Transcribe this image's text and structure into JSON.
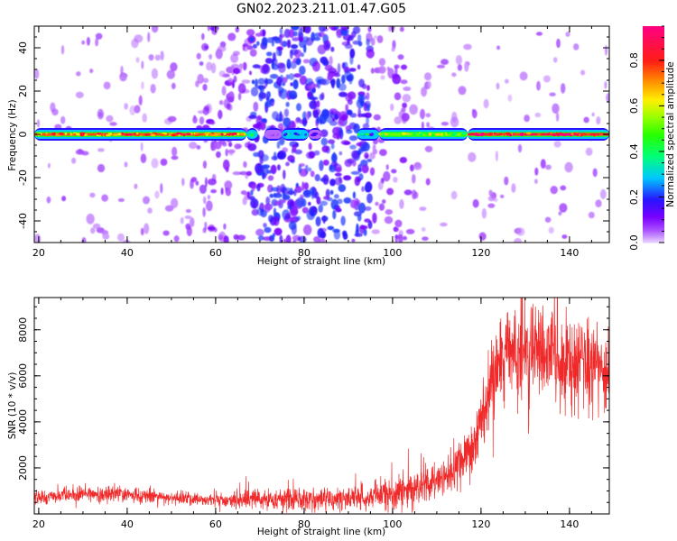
{
  "figure": {
    "title": "GN02.2023.211.01.47.G05"
  },
  "chart_data": [
    {
      "type": "heatmap",
      "xlabel": "Height of straight line (km)",
      "ylabel": "Frequency (Hz)",
      "xlim": [
        19,
        149
      ],
      "ylim": [
        -50,
        50
      ],
      "xticks": [
        20,
        40,
        60,
        80,
        100,
        120,
        140
      ],
      "yticks": [
        -40,
        -20,
        0,
        20,
        40
      ],
      "colorbar": {
        "label": "Normalized spectral amplitude",
        "range": [
          0,
          0.95
        ],
        "ticks": [
          0.0,
          0.2,
          0.4,
          0.6,
          0.8
        ],
        "tick_labels": [
          "0.0",
          "0.2",
          "0.4",
          "0.6",
          "0.8"
        ],
        "colormap": "gist_rainbow_r"
      },
      "carrier_line": {
        "frequency_hz": 0,
        "segments": [
          {
            "x_start": 19,
            "x_end": 67,
            "level": 0.8
          },
          {
            "x_start": 67,
            "x_end": 69.5,
            "level": 0.35
          },
          {
            "x_start": 71,
            "x_end": 75,
            "level": 0.05
          },
          {
            "x_start": 75,
            "x_end": 81,
            "level": 0.3
          },
          {
            "x_start": 81,
            "x_end": 84,
            "level": 0.05
          },
          {
            "x_start": 92,
            "x_end": 97,
            "level": 0.3
          },
          {
            "x_start": 97,
            "x_end": 117,
            "level": 0.55
          },
          {
            "x_start": 117,
            "x_end": 149,
            "level": 0.9
          }
        ]
      },
      "noise_regions": [
        {
          "x_range": [
            19,
            55
          ],
          "density": 0.12,
          "level": 0.05
        },
        {
          "x_range": [
            55,
            68
          ],
          "density": 0.45,
          "level": 0.08
        },
        {
          "x_range": [
            68,
            95
          ],
          "density": 0.9,
          "level": 0.18
        },
        {
          "x_range": [
            95,
            105
          ],
          "density": 0.35,
          "level": 0.07
        },
        {
          "x_range": [
            105,
            149
          ],
          "density": 0.1,
          "level": 0.05
        }
      ]
    },
    {
      "type": "line",
      "xlabel": "Height of straight line (km)",
      "ylabel": "SNR (10 * v/v)",
      "xlim": [
        19,
        149
      ],
      "ylim": [
        0,
        9400
      ],
      "xticks": [
        20,
        40,
        60,
        80,
        100,
        120,
        140
      ],
      "yticks": [
        2000,
        4000,
        6000,
        8000
      ],
      "series": [
        {
          "color": "#f02a2a",
          "x": [
            19,
            25,
            30,
            35,
            40,
            45,
            50,
            55,
            60,
            65,
            70,
            75,
            80,
            85,
            90,
            95,
            100,
            105,
            110,
            113,
            116,
            118,
            120,
            122,
            124,
            126,
            128,
            130,
            132,
            134,
            136,
            138,
            140,
            142,
            144,
            146,
            148,
            149
          ],
          "y": [
            700,
            780,
            860,
            880,
            850,
            760,
            690,
            650,
            610,
            600,
            630,
            640,
            650,
            640,
            680,
            760,
            900,
            1100,
            1450,
            1750,
            2200,
            2800,
            4000,
            5300,
            6300,
            6900,
            7000,
            6800,
            7000,
            7200,
            6800,
            6600,
            6800,
            6600,
            6500,
            6400,
            6000,
            5800
          ],
          "noise_amplitude": [
            200,
            220,
            240,
            250,
            240,
            220,
            200,
            200,
            220,
            260,
            330,
            330,
            380,
            330,
            380,
            430,
            480,
            530,
            600,
            650,
            750,
            900,
            1100,
            1300,
            1400,
            1450,
            1450,
            1450,
            1450,
            1450,
            1400,
            1400,
            1400,
            1400,
            1350,
            1350,
            1300,
            1300
          ]
        }
      ]
    }
  ]
}
